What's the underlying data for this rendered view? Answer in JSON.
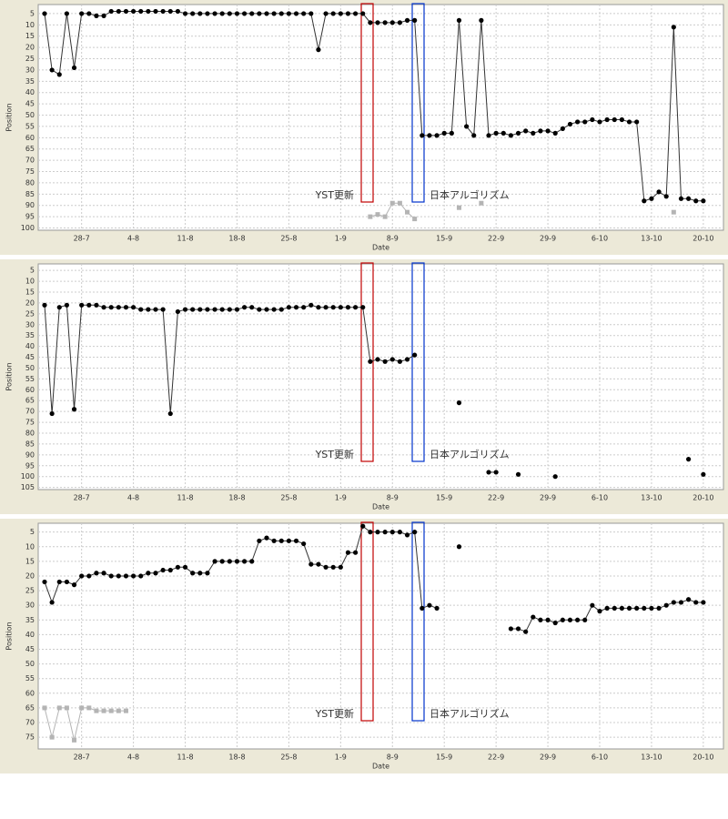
{
  "chart_data": [
    {
      "type": "line",
      "x_label": "Date",
      "y_label": "Position",
      "yreverse": true,
      "grid": true,
      "x": [
        "23-7",
        "24-7",
        "25-7",
        "26-7",
        "27-7",
        "28-7",
        "29-7",
        "30-7",
        "31-7",
        "1-8",
        "2-8",
        "3-8",
        "4-8",
        "5-8",
        "6-8",
        "7-8",
        "8-8",
        "9-8",
        "10-8",
        "11-8",
        "12-8",
        "13-8",
        "14-8",
        "15-8",
        "16-8",
        "17-8",
        "18-8",
        "19-8",
        "20-8",
        "21-8",
        "22-8",
        "23-8",
        "24-8",
        "25-8",
        "26-8",
        "27-8",
        "28-8",
        "29-8",
        "30-8",
        "31-8",
        "1-9",
        "2-9",
        "3-9",
        "4-9",
        "5-9",
        "6-9",
        "7-9",
        "8-9",
        "9-9",
        "10-9",
        "11-9",
        "12-9",
        "13-9",
        "14-9",
        "15-9",
        "16-9",
        "17-9",
        "18-9",
        "19-9",
        "20-9",
        "21-9",
        "22-9",
        "23-9",
        "24-9",
        "25-9",
        "26-9",
        "27-9",
        "28-9",
        "29-9",
        "30-9",
        "1-10",
        "2-10",
        "3-10",
        "4-10",
        "5-10",
        "6-10",
        "7-10",
        "8-10",
        "9-10",
        "10-10",
        "11-10",
        "12-10",
        "13-10",
        "14-10",
        "15-10",
        "16-10",
        "17-10",
        "18-10",
        "19-10",
        "20-10",
        "21-10"
      ],
      "xticks": [
        "28-7",
        "4-8",
        "11-8",
        "18-8",
        "25-8",
        "1-9",
        "8-9",
        "15-9",
        "22-9",
        "29-9",
        "6-10",
        "13-10",
        "20-10"
      ],
      "ylim": [
        1,
        101
      ],
      "yticks": [
        5,
        10,
        15,
        20,
        25,
        30,
        35,
        40,
        45,
        50,
        55,
        60,
        65,
        70,
        75,
        80,
        85,
        90,
        95,
        100
      ],
      "annotations": [
        {
          "text": "YST更新",
          "color": "#c00000"
        },
        {
          "text": "日本アルゴリズム",
          "color": "#0033cc"
        }
      ],
      "series": [
        {
          "color": "#000000",
          "values": [
            5,
            30,
            32,
            5,
            29,
            5,
            5,
            6,
            6,
            4,
            4,
            4,
            4,
            4,
            4,
            4,
            4,
            4,
            4,
            5,
            5,
            5,
            5,
            5,
            5,
            5,
            5,
            5,
            5,
            5,
            5,
            5,
            5,
            5,
            5,
            5,
            5,
            21,
            5,
            5,
            5,
            5,
            5,
            5,
            9,
            9,
            9,
            9,
            9,
            8,
            8,
            59,
            59,
            59,
            58,
            58,
            8,
            55,
            59,
            8,
            59,
            58,
            58,
            59,
            58,
            57,
            58,
            57,
            57,
            58,
            56,
            54,
            53,
            53,
            52,
            53,
            52,
            52,
            52,
            53,
            53,
            88,
            87,
            84,
            86,
            11,
            87,
            87,
            88,
            88,
            null
          ]
        },
        {
          "color": "#b4b4b4",
          "values": [
            null,
            null,
            null,
            null,
            null,
            null,
            null,
            null,
            null,
            null,
            null,
            null,
            null,
            null,
            null,
            null,
            null,
            null,
            null,
            null,
            null,
            null,
            null,
            null,
            null,
            null,
            null,
            null,
            null,
            null,
            null,
            null,
            null,
            null,
            null,
            null,
            null,
            null,
            null,
            null,
            null,
            null,
            null,
            null,
            95,
            94,
            95,
            89,
            89,
            93,
            96,
            null,
            null,
            null,
            null,
            null,
            91,
            null,
            null,
            89,
            null,
            null,
            null,
            null,
            null,
            null,
            null,
            null,
            null,
            null,
            null,
            null,
            null,
            null,
            null,
            null,
            null,
            null,
            null,
            null,
            null,
            null,
            null,
            null,
            null,
            93,
            null,
            null,
            null,
            null,
            null
          ]
        }
      ]
    },
    {
      "type": "line",
      "x_label": "Date",
      "y_label": "Position",
      "yreverse": true,
      "grid": true,
      "x": [
        "23-7",
        "24-7",
        "25-7",
        "26-7",
        "27-7",
        "28-7",
        "29-7",
        "30-7",
        "31-7",
        "1-8",
        "2-8",
        "3-8",
        "4-8",
        "5-8",
        "6-8",
        "7-8",
        "8-8",
        "9-8",
        "10-8",
        "11-8",
        "12-8",
        "13-8",
        "14-8",
        "15-8",
        "16-8",
        "17-8",
        "18-8",
        "19-8",
        "20-8",
        "21-8",
        "22-8",
        "23-8",
        "24-8",
        "25-8",
        "26-8",
        "27-8",
        "28-8",
        "29-8",
        "30-8",
        "31-8",
        "1-9",
        "2-9",
        "3-9",
        "4-9",
        "5-9",
        "6-9",
        "7-9",
        "8-9",
        "9-9",
        "10-9",
        "11-9",
        "12-9",
        "13-9",
        "14-9",
        "15-9",
        "16-9",
        "17-9",
        "18-9",
        "19-9",
        "20-9",
        "21-9",
        "22-9",
        "23-9",
        "24-9",
        "25-9",
        "26-9",
        "27-9",
        "28-9",
        "29-9",
        "30-9",
        "1-10",
        "2-10",
        "3-10",
        "4-10",
        "5-10",
        "6-10",
        "7-10",
        "8-10",
        "9-10",
        "10-10",
        "11-10",
        "12-10",
        "13-10",
        "14-10",
        "15-10",
        "16-10",
        "17-10",
        "18-10",
        "19-10",
        "20-10",
        "21-10"
      ],
      "xticks": [
        "28-7",
        "4-8",
        "11-8",
        "18-8",
        "25-8",
        "1-9",
        "8-9",
        "15-9",
        "22-9",
        "29-9",
        "6-10",
        "13-10",
        "20-10"
      ],
      "ylim": [
        2,
        106
      ],
      "yticks": [
        5,
        10,
        15,
        20,
        25,
        30,
        35,
        40,
        45,
        50,
        55,
        60,
        65,
        70,
        75,
        80,
        85,
        90,
        95,
        100,
        105
      ],
      "annotations": [
        {
          "text": "YST更新",
          "color": "#c00000"
        },
        {
          "text": "日本アルゴリズム",
          "color": "#0033cc"
        }
      ],
      "series": [
        {
          "color": "#000000",
          "values": [
            21,
            71,
            22,
            21,
            69,
            21,
            21,
            21,
            22,
            22,
            22,
            22,
            22,
            23,
            23,
            23,
            23,
            71,
            24,
            23,
            23,
            23,
            23,
            23,
            23,
            23,
            23,
            22,
            22,
            23,
            23,
            23,
            23,
            22,
            22,
            22,
            21,
            22,
            22,
            22,
            22,
            22,
            22,
            22,
            47,
            46,
            47,
            46,
            47,
            46,
            44,
            null,
            null,
            null,
            null,
            null,
            66,
            null,
            null,
            null,
            98,
            98,
            null,
            null,
            99,
            null,
            null,
            null,
            null,
            100,
            null,
            null,
            null,
            null,
            null,
            null,
            null,
            null,
            null,
            null,
            null,
            null,
            null,
            null,
            null,
            null,
            null,
            92,
            null,
            99,
            null
          ]
        }
      ]
    },
    {
      "type": "line",
      "x_label": "Date",
      "y_label": "Position",
      "yreverse": true,
      "grid": true,
      "x": [
        "23-7",
        "24-7",
        "25-7",
        "26-7",
        "27-7",
        "28-7",
        "29-7",
        "30-7",
        "31-7",
        "1-8",
        "2-8",
        "3-8",
        "4-8",
        "5-8",
        "6-8",
        "7-8",
        "8-8",
        "9-8",
        "10-8",
        "11-8",
        "12-8",
        "13-8",
        "14-8",
        "15-8",
        "16-8",
        "17-8",
        "18-8",
        "19-8",
        "20-8",
        "21-8",
        "22-8",
        "23-8",
        "24-8",
        "25-8",
        "26-8",
        "27-8",
        "28-8",
        "29-8",
        "30-8",
        "31-8",
        "1-9",
        "2-9",
        "3-9",
        "4-9",
        "5-9",
        "6-9",
        "7-9",
        "8-9",
        "9-9",
        "10-9",
        "11-9",
        "12-9",
        "13-9",
        "14-9",
        "15-9",
        "16-9",
        "17-9",
        "18-9",
        "19-9",
        "20-9",
        "21-9",
        "22-9",
        "23-9",
        "24-9",
        "25-9",
        "26-9",
        "27-9",
        "28-9",
        "29-9",
        "30-9",
        "1-10",
        "2-10",
        "3-10",
        "4-10",
        "5-10",
        "6-10",
        "7-10",
        "8-10",
        "9-10",
        "10-10",
        "11-10",
        "12-10",
        "13-10",
        "14-10",
        "15-10",
        "16-10",
        "17-10",
        "18-10",
        "19-10",
        "20-10",
        "21-10"
      ],
      "xticks": [
        "28-7",
        "4-8",
        "11-8",
        "18-8",
        "25-8",
        "1-9",
        "8-9",
        "15-9",
        "22-9",
        "29-9",
        "6-10",
        "13-10",
        "20-10"
      ],
      "ylim": [
        2,
        79
      ],
      "yticks": [
        5,
        10,
        15,
        20,
        25,
        30,
        35,
        40,
        45,
        50,
        55,
        60,
        65,
        70,
        75
      ],
      "annotations": [
        {
          "text": "YST更新",
          "color": "#c00000"
        },
        {
          "text": "日本アルゴリズム",
          "color": "#0033cc"
        }
      ],
      "series": [
        {
          "color": "#000000",
          "values": [
            22,
            29,
            22,
            22,
            23,
            20,
            20,
            19,
            19,
            20,
            20,
            20,
            20,
            20,
            19,
            19,
            18,
            18,
            17,
            17,
            19,
            19,
            19,
            15,
            15,
            15,
            15,
            15,
            15,
            8,
            7,
            8,
            8,
            8,
            8,
            9,
            16,
            16,
            17,
            17,
            17,
            12,
            12,
            3,
            5,
            5,
            5,
            5,
            5,
            6,
            5,
            31,
            30,
            31,
            null,
            null,
            10,
            null,
            null,
            null,
            null,
            null,
            null,
            38,
            38,
            39,
            34,
            35,
            35,
            36,
            35,
            35,
            35,
            35,
            30,
            32,
            31,
            31,
            31,
            31,
            31,
            31,
            31,
            31,
            30,
            29,
            29,
            28,
            29,
            29,
            null
          ]
        },
        {
          "color": "#b4b4b4",
          "values": [
            65,
            75,
            65,
            65,
            76,
            65,
            65,
            66,
            66,
            66,
            66,
            66,
            null,
            null,
            null,
            null,
            null,
            null,
            null,
            null,
            null,
            null,
            null,
            null,
            null,
            null,
            null,
            null,
            null,
            null,
            null,
            null,
            null,
            null,
            null,
            null,
            null,
            null,
            null,
            null,
            null,
            null,
            null,
            null,
            null,
            null,
            null,
            null,
            null,
            null,
            null,
            null,
            null,
            null,
            null,
            null,
            null,
            null,
            null,
            null,
            null,
            null,
            null,
            null,
            null,
            null,
            null,
            null,
            null,
            null,
            null,
            null,
            null,
            null,
            null,
            null,
            null,
            null,
            null,
            null,
            null,
            null,
            null,
            null,
            null,
            null,
            null,
            null,
            null,
            null,
            null
          ]
        }
      ]
    }
  ]
}
